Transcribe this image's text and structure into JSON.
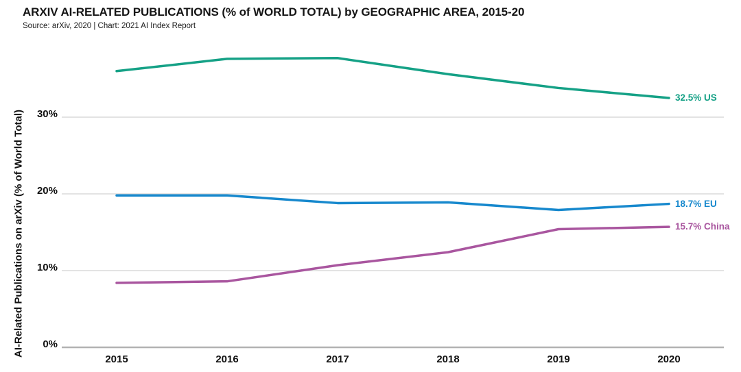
{
  "header": {
    "title": "ARXIV AI-RELATED PUBLICATIONS (% of WORLD TOTAL) by GEOGRAPHIC AREA, 2015-20",
    "source": "Source: arXiv, 2020 | Chart: 2021 AI Index Report"
  },
  "chart_data": {
    "type": "line",
    "title": "ARXIV AI-RELATED PUBLICATIONS (% of WORLD TOTAL) by GEOGRAPHIC AREA, 2015-20",
    "xlabel": "",
    "ylabel": "AI-Related Publications on arXiv (% of World Total)",
    "x": [
      2015,
      2016,
      2017,
      2018,
      2019,
      2020
    ],
    "ylim": [
      0,
      40
    ],
    "yticks": [
      0,
      10,
      20,
      30
    ],
    "ytick_labels": [
      "0%",
      "10%",
      "20%",
      "30%"
    ],
    "grid": "horizontal-only",
    "legend_position": "line-end-labels",
    "series": [
      {
        "name": "US",
        "color": "#15a186",
        "values": [
          36.0,
          37.6,
          37.7,
          35.6,
          33.8,
          32.5
        ],
        "end_label": "32.5% US"
      },
      {
        "name": "EU",
        "color": "#1688cd",
        "values": [
          19.8,
          19.8,
          18.8,
          18.9,
          17.9,
          18.7
        ],
        "end_label": "18.7% EU"
      },
      {
        "name": "China",
        "color": "#a9569f",
        "values": [
          8.4,
          8.6,
          10.7,
          12.4,
          15.4,
          15.7
        ],
        "end_label": "15.7% China"
      }
    ]
  },
  "colors": {
    "background": "#ffffff",
    "grid": "#dadada",
    "axis": "#b3b3b3",
    "text": "#111111"
  }
}
